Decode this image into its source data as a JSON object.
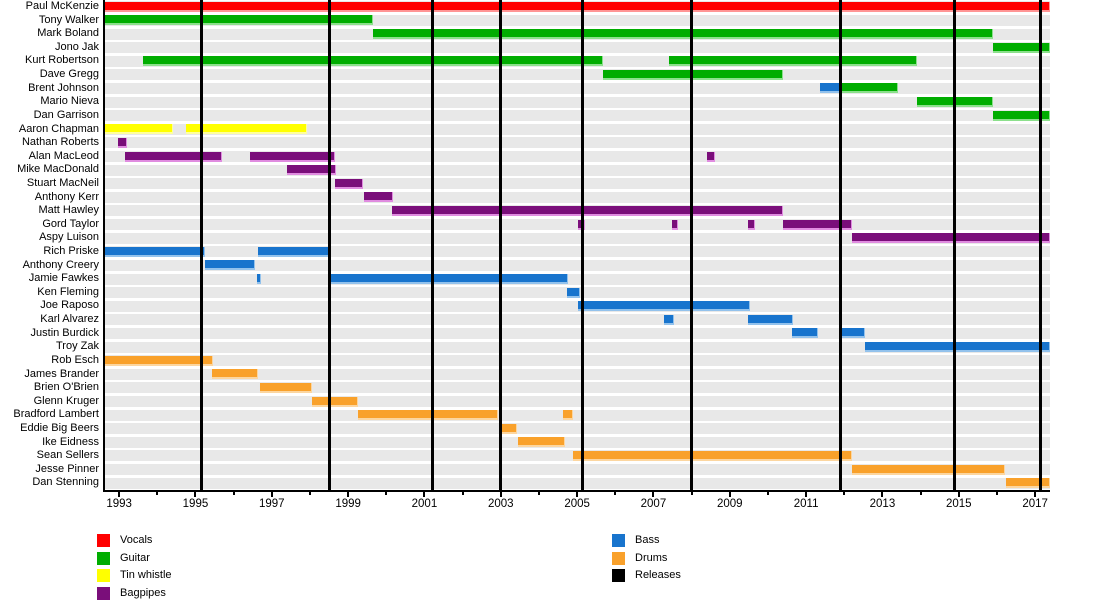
{
  "chart_data": {
    "type": "timeline",
    "description": "Band members timeline gantt chart: members vs years, colored by instrument, black vertical lines are releases",
    "x_axis": {
      "year_min": 1992.63,
      "year_max": 2017.39,
      "labeled_years": [
        "1993",
        "1995",
        "1997",
        "1999",
        "2001",
        "2003",
        "2005",
        "2007",
        "2009",
        "2011",
        "2013",
        "2015",
        "2017"
      ],
      "minor_tick_years": [
        1994,
        1996,
        1998,
        2000,
        2002,
        2004,
        2006,
        2008,
        2010,
        2012,
        2014,
        2016
      ]
    },
    "colors": {
      "row_background": "#E8E8E8",
      "axis": "#000000",
      "vocals": "#FF0000",
      "guitar": "#00AD00",
      "tin_whistle": "#FFFF00",
      "bagpipes": "#7A0E7A",
      "bass": "#1874CD",
      "drums": "#F9A12B",
      "releases": "#000000",
      "vocals_light": "#FF9595",
      "guitar_light": "#8CE08C",
      "tin_whistle_light": "#FFFF9E",
      "bagpipes_light": "#E08CE0",
      "bass_light": "#93C2EC",
      "drums_light": "#FCD6A0"
    },
    "legend": {
      "left_column": [
        {
          "key": "vocals",
          "label": "Vocals"
        },
        {
          "key": "guitar",
          "label": "Guitar"
        },
        {
          "key": "tin_whistle",
          "label": "Tin whistle"
        },
        {
          "key": "bagpipes",
          "label": "Bagpipes"
        }
      ],
      "right_column": [
        {
          "key": "bass",
          "label": "Bass"
        },
        {
          "key": "drums",
          "label": "Drums"
        },
        {
          "key": "releases",
          "label": "Releases"
        }
      ]
    },
    "releases_years": [
      1995.15,
      1998.5,
      2001.2,
      2003.0,
      2005.15,
      2008.0,
      2011.9,
      2014.9,
      2017.15
    ],
    "members": [
      {
        "name": "Paul McKenzie",
        "segments": [
          [
            "vocals",
            1992.63,
            2017.39
          ]
        ]
      },
      {
        "name": "Tony Walker",
        "segments": [
          [
            "guitar",
            1992.63,
            1999.66
          ]
        ]
      },
      {
        "name": "Mark Boland",
        "segments": [
          [
            "guitar",
            1999.66,
            2015.9
          ]
        ]
      },
      {
        "name": "Jono Jak",
        "segments": [
          [
            "guitar",
            2015.9,
            2017.39
          ]
        ]
      },
      {
        "name": "Kurt Robertson",
        "segments": [
          [
            "guitar",
            1993.63,
            2005.68
          ],
          [
            "guitar",
            2007.41,
            2013.9
          ]
        ]
      },
      {
        "name": "Dave Gregg",
        "segments": [
          [
            "guitar",
            2005.68,
            2010.4
          ]
        ]
      },
      {
        "name": "Brent Johnson",
        "segments": [
          [
            "bass",
            2011.37,
            2011.92
          ],
          [
            "guitar",
            2011.92,
            2013.4
          ]
        ]
      },
      {
        "name": "Mario Nieva",
        "segments": [
          [
            "guitar",
            2013.9,
            2015.9
          ]
        ]
      },
      {
        "name": "Dan Garrison",
        "segments": [
          [
            "guitar",
            2015.9,
            2017.39
          ]
        ]
      },
      {
        "name": "Aaron Chapman",
        "segments": [
          [
            "tin_whistle",
            1992.63,
            1994.41
          ],
          [
            "tin_whistle",
            1994.75,
            1997.92
          ]
        ]
      },
      {
        "name": "Nathan Roberts",
        "segments": [
          [
            "bagpipes",
            1992.97,
            1993.21
          ]
        ]
      },
      {
        "name": "Alan MacLeod",
        "segments": [
          [
            "bagpipes",
            1993.16,
            1995.7
          ],
          [
            "bagpipes",
            1996.43,
            1998.66
          ],
          [
            "bagpipes",
            2008.4,
            2008.61
          ]
        ]
      },
      {
        "name": "Mike MacDonald",
        "segments": [
          [
            "bagpipes",
            1997.4,
            1998.68
          ]
        ]
      },
      {
        "name": "Stuart MacNeil",
        "segments": [
          [
            "bagpipes",
            1998.66,
            1999.39
          ]
        ]
      },
      {
        "name": "Anthony Kerr",
        "segments": [
          [
            "bagpipes",
            1999.42,
            2000.18
          ]
        ]
      },
      {
        "name": "Matt Hawley",
        "segments": [
          [
            "bagpipes",
            2000.15,
            2010.4
          ]
        ]
      },
      {
        "name": "Gord Taylor",
        "segments": [
          [
            "bagpipes",
            2005.02,
            2005.2
          ],
          [
            "bagpipes",
            2007.49,
            2007.64
          ],
          [
            "bagpipes",
            2009.48,
            2009.66
          ],
          [
            "bagpipes",
            2010.4,
            2012.2
          ]
        ]
      },
      {
        "name": "Aspy Luison",
        "segments": [
          [
            "bagpipes",
            2012.2,
            2017.39
          ]
        ]
      },
      {
        "name": "Rich Priske",
        "segments": [
          [
            "bass",
            1992.63,
            1995.25
          ],
          [
            "bass",
            1996.64,
            1998.53
          ]
        ]
      },
      {
        "name": "Anthony Creery",
        "segments": [
          [
            "bass",
            1995.25,
            1996.56
          ]
        ]
      },
      {
        "name": "Jamie Fawkes",
        "segments": [
          [
            "bass",
            1996.6,
            1996.72
          ],
          [
            "bass",
            1998.53,
            2004.76
          ]
        ]
      },
      {
        "name": "Ken Fleming",
        "segments": [
          [
            "bass",
            2004.74,
            2005.08
          ]
        ]
      },
      {
        "name": "Joe Raposo",
        "segments": [
          [
            "bass",
            2005.02,
            2009.53
          ]
        ]
      },
      {
        "name": "Karl Alvarez",
        "segments": [
          [
            "bass",
            2007.28,
            2007.54
          ],
          [
            "bass",
            2009.48,
            2010.66
          ]
        ]
      },
      {
        "name": "Justin Burdick",
        "segments": [
          [
            "bass",
            2010.63,
            2011.31
          ],
          [
            "bass",
            2011.89,
            2012.54
          ]
        ]
      },
      {
        "name": "Troy Zak",
        "segments": [
          [
            "bass",
            2012.54,
            2017.39
          ]
        ]
      },
      {
        "name": "Rob Esch",
        "segments": [
          [
            "drums",
            1992.63,
            1995.46
          ]
        ]
      },
      {
        "name": "James Brander",
        "segments": [
          [
            "drums",
            1995.44,
            1996.64
          ]
        ]
      },
      {
        "name": "Brien O'Brien",
        "segments": [
          [
            "drums",
            1996.69,
            1998.06
          ]
        ]
      },
      {
        "name": "Glenn Kruger",
        "segments": [
          [
            "drums",
            1998.06,
            1999.26
          ]
        ]
      },
      {
        "name": "Bradford Lambert",
        "segments": [
          [
            "drums",
            1999.26,
            2002.93
          ],
          [
            "drums",
            2004.63,
            2004.89
          ]
        ]
      },
      {
        "name": "Eddie Big Beers",
        "segments": [
          [
            "drums",
            2002.98,
            2003.43
          ]
        ]
      },
      {
        "name": "Ike Eidness",
        "segments": [
          [
            "drums",
            2003.45,
            2004.68
          ]
        ]
      },
      {
        "name": "Sean Sellers",
        "segments": [
          [
            "drums",
            2004.89,
            2012.2
          ]
        ]
      },
      {
        "name": "Jesse Pinner",
        "segments": [
          [
            "drums",
            2012.2,
            2016.2
          ]
        ]
      },
      {
        "name": "Dan Stenning",
        "segments": [
          [
            "drums",
            2016.25,
            2017.39
          ]
        ]
      }
    ]
  }
}
